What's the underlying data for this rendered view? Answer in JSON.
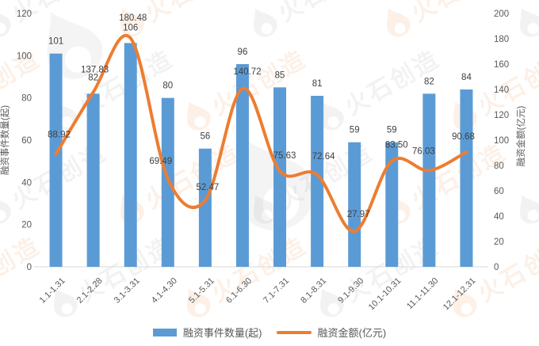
{
  "watermark": {
    "text": "火石创造"
  },
  "legend": {
    "bar_label": "融资事件数量(起)",
    "line_label": "融资金额(亿元)"
  },
  "colors": {
    "bar": "#5B9BD5",
    "line": "#ED7D31",
    "axis_line": "#D9D9D9",
    "axis_text": "#595959",
    "label_text": "#404040",
    "watermark_orange": "#ED7D31",
    "watermark_gray": "#8c8c8c"
  },
  "chart_data": {
    "type": "bar",
    "subtype": "combo-bar-line",
    "categories": [
      "1.1-1.31",
      "2.1-2.28",
      "3.1-3.31",
      "4.1-4.30",
      "5.1-5.31",
      "6.1-6.30",
      "7.1-7.31",
      "8.1-8.31",
      "9.1-9.30",
      "10.1-10.31",
      "11.1-11.30",
      "12.1-12.31"
    ],
    "series": [
      {
        "name": "融资事件数量(起)",
        "type": "bar",
        "axis": "left",
        "color": "#5B9BD5",
        "values": [
          101,
          82,
          106,
          80,
          56,
          96,
          85,
          81,
          59,
          59,
          82,
          84
        ]
      },
      {
        "name": "融资金额(亿元)",
        "type": "line",
        "axis": "right",
        "color": "#ED7D31",
        "values": [
          "88.92",
          "137.83",
          "180.48",
          "69.49",
          "52.47",
          "140.72",
          "75.63",
          "72.64",
          "27.97",
          "83.50",
          "76.03",
          "90.68"
        ]
      }
    ],
    "left_axis": {
      "title": "融资事件数量(起)",
      "min": 0,
      "max": 120,
      "step": 20
    },
    "right_axis": {
      "title": "融资金额(亿元)",
      "min": 0,
      "max": 200,
      "step": 20
    },
    "grid": false,
    "legend_position": "bottom",
    "title": ""
  }
}
